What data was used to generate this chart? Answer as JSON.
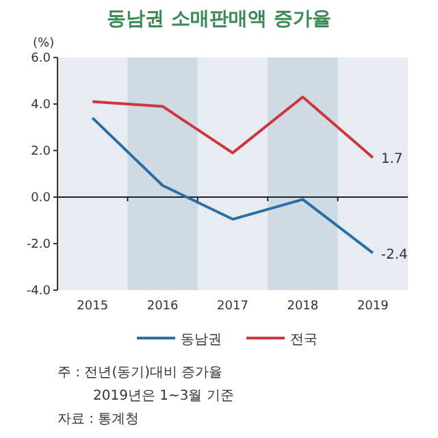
{
  "chart_data": {
    "type": "line",
    "title": "동남권 소매판매액 증가율",
    "ylabel": "(%)",
    "categories": [
      "2015",
      "2016",
      "2017",
      "2018",
      "2019"
    ],
    "series": [
      {
        "name": "동남권",
        "color": "#2a6ea6",
        "values": [
          3.4,
          0.5,
          -0.95,
          -0.1,
          -2.4
        ],
        "value_labels": [
          null,
          null,
          null,
          null,
          "-2.4"
        ]
      },
      {
        "name": "전국",
        "color": "#d0343c",
        "values": [
          4.1,
          3.9,
          1.9,
          4.3,
          1.7
        ],
        "value_labels": [
          null,
          null,
          null,
          null,
          "1.7"
        ]
      }
    ],
    "ylim": [
      -4,
      6
    ],
    "yticks": [
      {
        "value": -4,
        "label": "-4.0"
      },
      {
        "value": -2,
        "label": "-2.0"
      },
      {
        "value": 0,
        "label": "0.0"
      },
      {
        "value": 2,
        "label": "2.0"
      },
      {
        "value": 4,
        "label": "4.0"
      },
      {
        "value": 6,
        "label": "6.0"
      }
    ],
    "bands": [
      {
        "axis": "x",
        "from": "2016",
        "to": "2016",
        "color": "#cfdbe4"
      },
      {
        "axis": "x",
        "from": "2018",
        "to": "2018",
        "color": "#cfdbe4"
      }
    ],
    "legend": "bottom",
    "annotations": [
      "주 : 전년(동기)대비 증가율",
      "2019년은 1~3월 기준",
      "자료 : 통계청"
    ]
  }
}
